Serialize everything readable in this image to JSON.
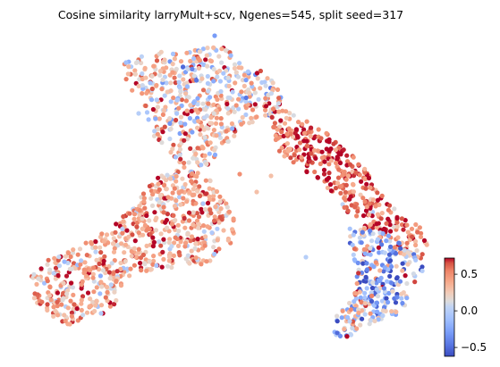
{
  "chart_data": {
    "type": "scatter",
    "title": "Cosine similarity larryMult+scv, Ngenes=545, split seed=317",
    "xlabel": "",
    "ylabel": "",
    "axes_visible": false,
    "grid": false,
    "legend": "none",
    "colormap": "coolwarm",
    "colorbar": {
      "range": [
        -0.62,
        0.72
      ],
      "ticks": [
        0.5,
        0.0,
        -0.5
      ],
      "tick_labels": [
        "0.5",
        "0.0",
        "−0.5"
      ],
      "placement": "right"
    },
    "points_note": "embedding point cloud; each point is a cell colored by cosine similarity",
    "regions": [
      {
        "name": "top-lobe",
        "values_mean": 0.22,
        "values_spread": 0.28
      },
      {
        "name": "left-arm",
        "values_mean": 0.38,
        "values_spread": 0.22
      },
      {
        "name": "center-right-band",
        "values_mean": 0.55,
        "values_spread": 0.18
      },
      {
        "name": "lower-right-tail",
        "values_mean": 0.05,
        "values_spread": 0.4
      }
    ]
  },
  "colors": {
    "cool_end": "#3b4cc0",
    "mid": "#dddddd",
    "warm_end": "#b40426"
  }
}
